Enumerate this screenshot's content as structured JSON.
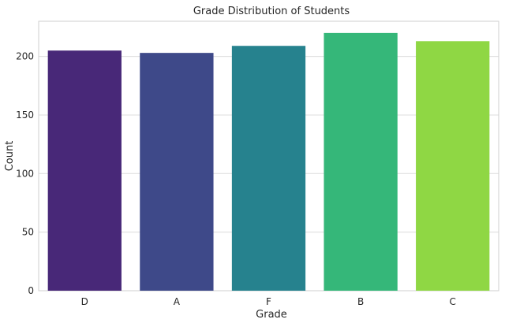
{
  "chart_data": {
    "type": "bar",
    "title": "Grade Distribution of Students",
    "xlabel": "Grade",
    "ylabel": "Count",
    "categories": [
      "D",
      "A",
      "F",
      "B",
      "C"
    ],
    "values": [
      205,
      203,
      209,
      220,
      213
    ],
    "colors": [
      "#482878",
      "#3e4989",
      "#26828e",
      "#35b779",
      "#8fd744"
    ],
    "ylim": [
      0,
      230
    ],
    "yticks": [
      0,
      50,
      100,
      150,
      200
    ],
    "grid": true,
    "legend": "none"
  }
}
